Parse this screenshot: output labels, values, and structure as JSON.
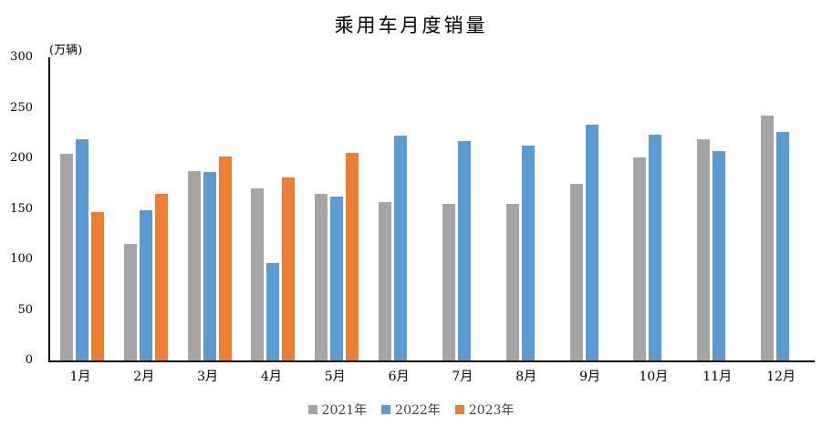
{
  "chart_data": {
    "type": "bar",
    "title": "乘用车月度销量",
    "unit_label": "(万辆)",
    "xlabel": "",
    "ylabel": "万辆",
    "ylim": [
      0,
      300
    ],
    "yticks": [
      0,
      50,
      100,
      150,
      200,
      250,
      300
    ],
    "grid": false,
    "legend_position": "bottom",
    "categories": [
      "1月",
      "2月",
      "3月",
      "4月",
      "5月",
      "6月",
      "7月",
      "8月",
      "9月",
      "10月",
      "11月",
      "12月"
    ],
    "series": [
      {
        "name": "2021年",
        "color": "#A5A5A5",
        "values": [
          204.5,
          115.6,
          187.4,
          170.4,
          164.6,
          156.9,
          155.1,
          155.2,
          175.1,
          200.7,
          219.2,
          242.2
        ]
      },
      {
        "name": "2022年",
        "color": "#5B9BD5",
        "values": [
          218.6,
          148.7,
          186.4,
          96.5,
          162.3,
          222.2,
          217.4,
          212.5,
          233.2,
          223.1,
          207.5,
          226.3
        ]
      },
      {
        "name": "2023年",
        "color": "#ED7D31",
        "values": [
          146.9,
          165.3,
          201.7,
          181.1,
          205.1,
          null,
          null,
          null,
          null,
          null,
          null,
          null
        ]
      }
    ]
  }
}
